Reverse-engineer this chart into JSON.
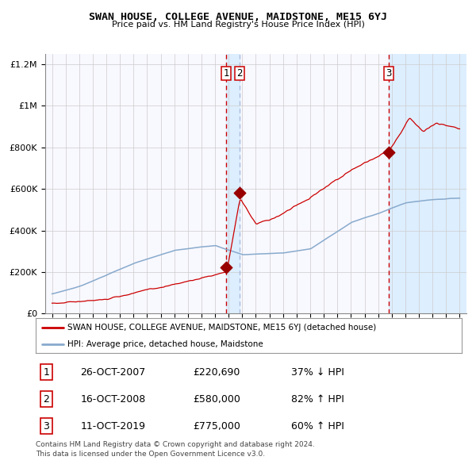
{
  "title": "SWAN HOUSE, COLLEGE AVENUE, MAIDSTONE, ME15 6YJ",
  "subtitle": "Price paid vs. HM Land Registry's House Price Index (HPI)",
  "legend_line1": "SWAN HOUSE, COLLEGE AVENUE, MAIDSTONE, ME15 6YJ (detached house)",
  "legend_line2": "HPI: Average price, detached house, Maidstone",
  "footer1": "Contains HM Land Registry data © Crown copyright and database right 2024.",
  "footer2": "This data is licensed under the Open Government Licence v3.0.",
  "transactions": [
    {
      "num": 1,
      "date": "26-OCT-2007",
      "price": 220690,
      "pct": "37%",
      "dir": "↓",
      "year": 2007.82
    },
    {
      "num": 2,
      "date": "16-OCT-2008",
      "price": 580000,
      "pct": "82%",
      "dir": "↑",
      "year": 2008.79
    },
    {
      "num": 3,
      "date": "11-OCT-2019",
      "price": 775000,
      "pct": "60%",
      "dir": "↑",
      "year": 2019.78
    }
  ],
  "red_line_color": "#cc0000",
  "blue_line_color": "#88aacc",
  "vline1_color": "#cc0000",
  "vline2_color": "#aabbdd",
  "vline3_color": "#cc0000",
  "shade_color": "#ddeeff",
  "grid_color": "#cccccc",
  "bg_color": "#ffffff",
  "plot_bg": "#f8f8ff",
  "ylim": [
    0,
    1250000
  ],
  "yticks": [
    0,
    200000,
    400000,
    600000,
    800000,
    1000000,
    1200000
  ],
  "xlim_start": 1994.5,
  "xlim_end": 2025.5
}
